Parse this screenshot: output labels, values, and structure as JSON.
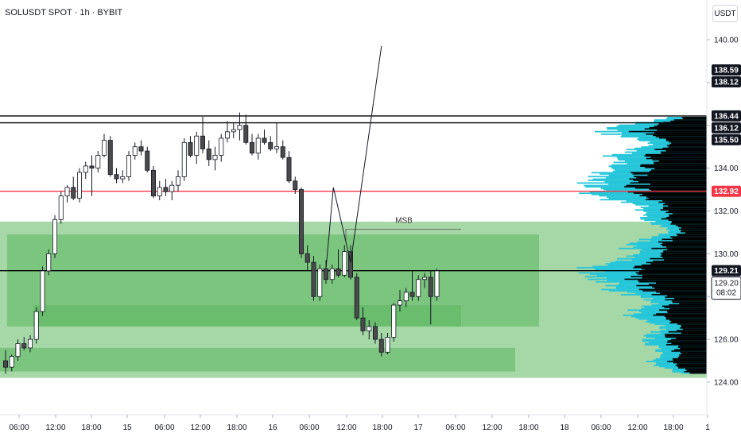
{
  "header": {
    "symbol": "SOLUSDT SPOT · 1h · BYBIT",
    "currency_button": "USDT"
  },
  "colors": {
    "candle_up_border": "#131722",
    "candle_up_fill": "#ffffff",
    "candle_down_fill": "#4a4a4a",
    "zone_green": "#4caf50",
    "volume_profile_cyan": "#26c6da",
    "volume_profile_black": "#000000",
    "resistance_red": "#f23645",
    "price_badge_dark": "#131722"
  },
  "chart_data": {
    "type": "candlestick",
    "x_axis_ticks": [
      "06:00",
      "12:00",
      "18:00",
      "15",
      "06:00",
      "12:00",
      "18:00",
      "16",
      "06:00",
      "12:00",
      "18:00",
      "17",
      "06:00",
      "12:00",
      "18:00",
      "18",
      "06:00",
      "12:00",
      "18:00",
      "1"
    ],
    "y_axis_ticks": [
      140,
      138,
      136,
      134,
      132,
      130,
      128,
      126,
      124
    ],
    "ylim": [
      123.8,
      141.4
    ],
    "price_badges": [
      {
        "label": "138.59",
        "value": 138.59,
        "style": "dark"
      },
      {
        "label": "138.12",
        "value": 138.12,
        "style": "dark"
      },
      {
        "label": "136.44",
        "value": 136.44,
        "style": "dark"
      },
      {
        "label": "136.12",
        "value": 136.12,
        "style": "dark"
      },
      {
        "label": "135.50",
        "value": 135.5,
        "style": "dark"
      },
      {
        "label": "132.92",
        "value": 132.92,
        "style": "red"
      },
      {
        "label": "129.21",
        "value": 129.21,
        "style": "dark"
      }
    ],
    "current_price": {
      "price": "129.20",
      "countdown": "08:02",
      "value": 129.2
    },
    "horizontal_lines": [
      {
        "value": 136.44,
        "color": "#000000"
      },
      {
        "value": 136.12,
        "color": "#000000"
      },
      {
        "value": 132.92,
        "color": "#f23645"
      },
      {
        "value": 129.21,
        "color": "#000000"
      }
    ],
    "annotations": [
      {
        "text": "MSB",
        "value": 131.15
      }
    ],
    "zones": [
      {
        "top": 131.5,
        "bottom": 124.2,
        "opacity": 0.5
      },
      {
        "top": 130.9,
        "bottom": 126.6,
        "opacity": 0.45
      },
      {
        "top": 127.6,
        "bottom": 126.6,
        "opacity": 0.35
      },
      {
        "top": 125.6,
        "bottom": 124.5,
        "opacity": 0.45
      }
    ],
    "projection": [
      {
        "x_hour": 52.0,
        "y": 129.3
      },
      {
        "x_hour": 53.2,
        "y": 133.1
      },
      {
        "x_hour": 56.0,
        "y": 129.6
      },
      {
        "x_hour": 61.0,
        "y": 139.7
      }
    ],
    "candles": [
      [
        0,
        125.0,
        125.5,
        124.4,
        124.7
      ],
      [
        1,
        124.7,
        125.3,
        124.5,
        125.2
      ],
      [
        2,
        125.2,
        126.0,
        125.0,
        125.8
      ],
      [
        3,
        125.8,
        126.1,
        125.5,
        125.6
      ],
      [
        4,
        125.6,
        126.2,
        125.4,
        126.0
      ],
      [
        5,
        126.0,
        127.5,
        125.8,
        127.3
      ],
      [
        6,
        127.3,
        129.4,
        127.1,
        129.2
      ],
      [
        7,
        129.2,
        130.2,
        129.0,
        130.0
      ],
      [
        8,
        130.0,
        131.8,
        129.8,
        131.6
      ],
      [
        9,
        131.6,
        132.9,
        131.4,
        132.7
      ],
      [
        10,
        132.7,
        133.2,
        132.4,
        133.1
      ],
      [
        11,
        133.1,
        133.6,
        132.5,
        132.6
      ],
      [
        12,
        132.6,
        134.0,
        132.4,
        133.8
      ],
      [
        13,
        133.8,
        134.3,
        133.5,
        134.1
      ],
      [
        14,
        134.1,
        134.6,
        132.7,
        134.0
      ],
      [
        15,
        134.0,
        134.8,
        133.8,
        134.6
      ],
      [
        16,
        134.6,
        135.6,
        134.5,
        135.3
      ],
      [
        17,
        135.3,
        135.5,
        133.6,
        133.7
      ],
      [
        18,
        133.7,
        134.0,
        133.3,
        133.5
      ],
      [
        19,
        133.5,
        133.9,
        133.3,
        133.6
      ],
      [
        20,
        133.6,
        134.8,
        133.4,
        134.6
      ],
      [
        21,
        134.6,
        135.2,
        134.4,
        135.0
      ],
      [
        22,
        135.0,
        135.3,
        134.6,
        134.8
      ],
      [
        23,
        134.8,
        135.0,
        133.8,
        133.9
      ],
      [
        24,
        133.9,
        134.1,
        132.6,
        132.7
      ],
      [
        25,
        132.7,
        133.4,
        132.5,
        133.1
      ],
      [
        26,
        133.1,
        133.5,
        132.7,
        132.9
      ],
      [
        27,
        132.9,
        133.4,
        132.5,
        133.2
      ],
      [
        28,
        133.2,
        133.9,
        132.9,
        133.6
      ],
      [
        29,
        133.6,
        135.4,
        133.4,
        135.2
      ],
      [
        30,
        135.2,
        135.5,
        134.5,
        134.6
      ],
      [
        31,
        134.6,
        135.7,
        134.2,
        135.5
      ],
      [
        32,
        135.5,
        136.4,
        134.7,
        134.9
      ],
      [
        33,
        134.9,
        135.3,
        134.1,
        134.4
      ],
      [
        34,
        134.4,
        135.0,
        133.9,
        134.6
      ],
      [
        35,
        134.6,
        135.6,
        134.3,
        135.4
      ],
      [
        36,
        135.4,
        136.2,
        135.2,
        135.7
      ],
      [
        37,
        135.7,
        136.1,
        135.4,
        135.8
      ],
      [
        38,
        135.8,
        136.6,
        135.3,
        136.0
      ],
      [
        39,
        136.0,
        136.5,
        135.1,
        135.2
      ],
      [
        40,
        135.2,
        135.6,
        134.6,
        134.7
      ],
      [
        41,
        134.7,
        135.6,
        134.4,
        135.4
      ],
      [
        42,
        135.4,
        135.8,
        135.1,
        135.2
      ],
      [
        43,
        135.2,
        135.5,
        134.8,
        134.9
      ],
      [
        44,
        134.9,
        136.1,
        134.7,
        135.0
      ],
      [
        45,
        135.0,
        135.3,
        134.4,
        134.5
      ],
      [
        46,
        134.5,
        134.8,
        133.3,
        133.4
      ],
      [
        47,
        133.4,
        133.6,
        132.8,
        133.0
      ],
      [
        48,
        133.0,
        133.1,
        129.8,
        130.0
      ],
      [
        49,
        130.0,
        130.4,
        129.2,
        129.6
      ],
      [
        50,
        129.6,
        129.9,
        127.8,
        128.0
      ],
      [
        51,
        128.0,
        129.5,
        127.8,
        129.3
      ],
      [
        52,
        129.3,
        129.7,
        128.6,
        128.8
      ],
      [
        53,
        128.8,
        129.5,
        128.6,
        129.3
      ],
      [
        54,
        129.3,
        130.2,
        128.9,
        129.0
      ],
      [
        55,
        129.0,
        130.4,
        128.9,
        130.1
      ],
      [
        56,
        130.1,
        130.4,
        128.8,
        128.9
      ],
      [
        57,
        128.9,
        129.1,
        126.9,
        127.0
      ],
      [
        58,
        127.0,
        127.5,
        126.2,
        126.4
      ],
      [
        59,
        126.4,
        126.9,
        126.0,
        126.6
      ],
      [
        60,
        126.6,
        126.8,
        125.8,
        126.0
      ],
      [
        61,
        126.0,
        126.3,
        125.2,
        125.4
      ],
      [
        62,
        125.4,
        126.3,
        125.3,
        126.1
      ],
      [
        63,
        126.1,
        127.7,
        125.9,
        127.6
      ],
      [
        64,
        127.6,
        128.3,
        127.3,
        127.8
      ],
      [
        65,
        127.8,
        128.4,
        127.5,
        128.2
      ],
      [
        66,
        128.2,
        129.2,
        127.8,
        128.0
      ],
      [
        67,
        128.0,
        129.0,
        127.8,
        128.8
      ],
      [
        68,
        128.8,
        129.1,
        128.4,
        128.9
      ],
      [
        69,
        128.9,
        129.2,
        126.7,
        128.0
      ],
      [
        70,
        128.0,
        129.3,
        127.8,
        129.2
      ]
    ]
  }
}
